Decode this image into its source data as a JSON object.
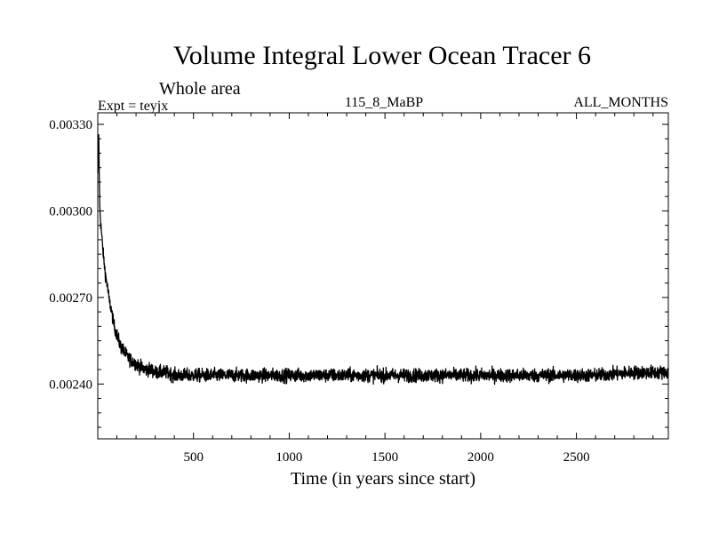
{
  "chart_data": {
    "type": "line",
    "title": "Volume Integral Lower Ocean Tracer 6",
    "subtitle": "Whole area",
    "experiment_label": "Expt = teyjx",
    "period_label": "115_8_MaBP",
    "months_label": "ALL_MONTHS",
    "xlabel": "Time (in years since start)",
    "ylabel": "",
    "xlim": [
      0,
      2980
    ],
    "ylim": [
      0.00221,
      0.00334
    ],
    "x_ticks": [
      500,
      1000,
      1500,
      2000,
      2500
    ],
    "y_ticks": [
      0.0024,
      0.0027,
      0.003,
      0.0033
    ],
    "x_tick_labels": [
      "500",
      "1000",
      "1500",
      "2000",
      "2500"
    ],
    "y_tick_labels": [
      "0.00240",
      "0.00270",
      "0.00300",
      "0.00330"
    ],
    "grid": false,
    "series": [
      {
        "name": "Lower ocean tracer 6",
        "color": "#000000",
        "x": [
          0,
          5,
          10,
          15,
          20,
          25,
          30,
          40,
          50,
          60,
          70,
          80,
          90,
          100,
          110,
          120,
          130,
          140,
          150,
          160,
          180,
          200,
          220,
          250,
          280,
          300,
          330,
          360,
          400,
          450,
          500,
          600,
          700,
          800,
          900,
          1000,
          1200,
          1400,
          1600,
          1800,
          2000,
          2200,
          2400,
          2600,
          2800,
          2980
        ],
        "values": [
          0.00312,
          0.00327,
          0.00302,
          0.00296,
          0.00292,
          0.00288,
          0.00284,
          0.00278,
          0.00274,
          0.00269,
          0.00266,
          0.00262,
          0.00259,
          0.00257,
          0.00255,
          0.00253,
          0.00252,
          0.00251,
          0.0025,
          0.00249,
          0.00248,
          0.00247,
          0.00246,
          0.00245,
          0.00245,
          0.00244,
          0.00244,
          0.00244,
          0.00243,
          0.00243,
          0.00243,
          0.00243,
          0.00243,
          0.00243,
          0.00243,
          0.00243,
          0.00243,
          0.00243,
          0.00243,
          0.00243,
          0.00243,
          0.00243,
          0.00243,
          0.00243,
          0.00244,
          0.00244
        ],
        "noise_amplitude": 3e-05,
        "points": 2980
      }
    ]
  }
}
